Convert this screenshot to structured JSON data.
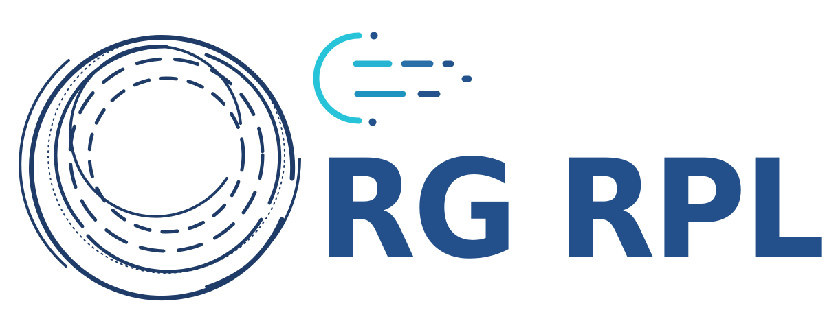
{
  "logo": {
    "wordmark": "RG RPL",
    "colors": {
      "primary": "#234f8a",
      "dark": "#1f3b68",
      "accent_cyan": "#27c3d8",
      "accent_teal": "#1e8fb8",
      "background": "#ffffff"
    },
    "icons": {
      "ring_emblem": "concentric-dashed-rings-icon",
      "speed_mark": "speed-lines-icon"
    }
  }
}
